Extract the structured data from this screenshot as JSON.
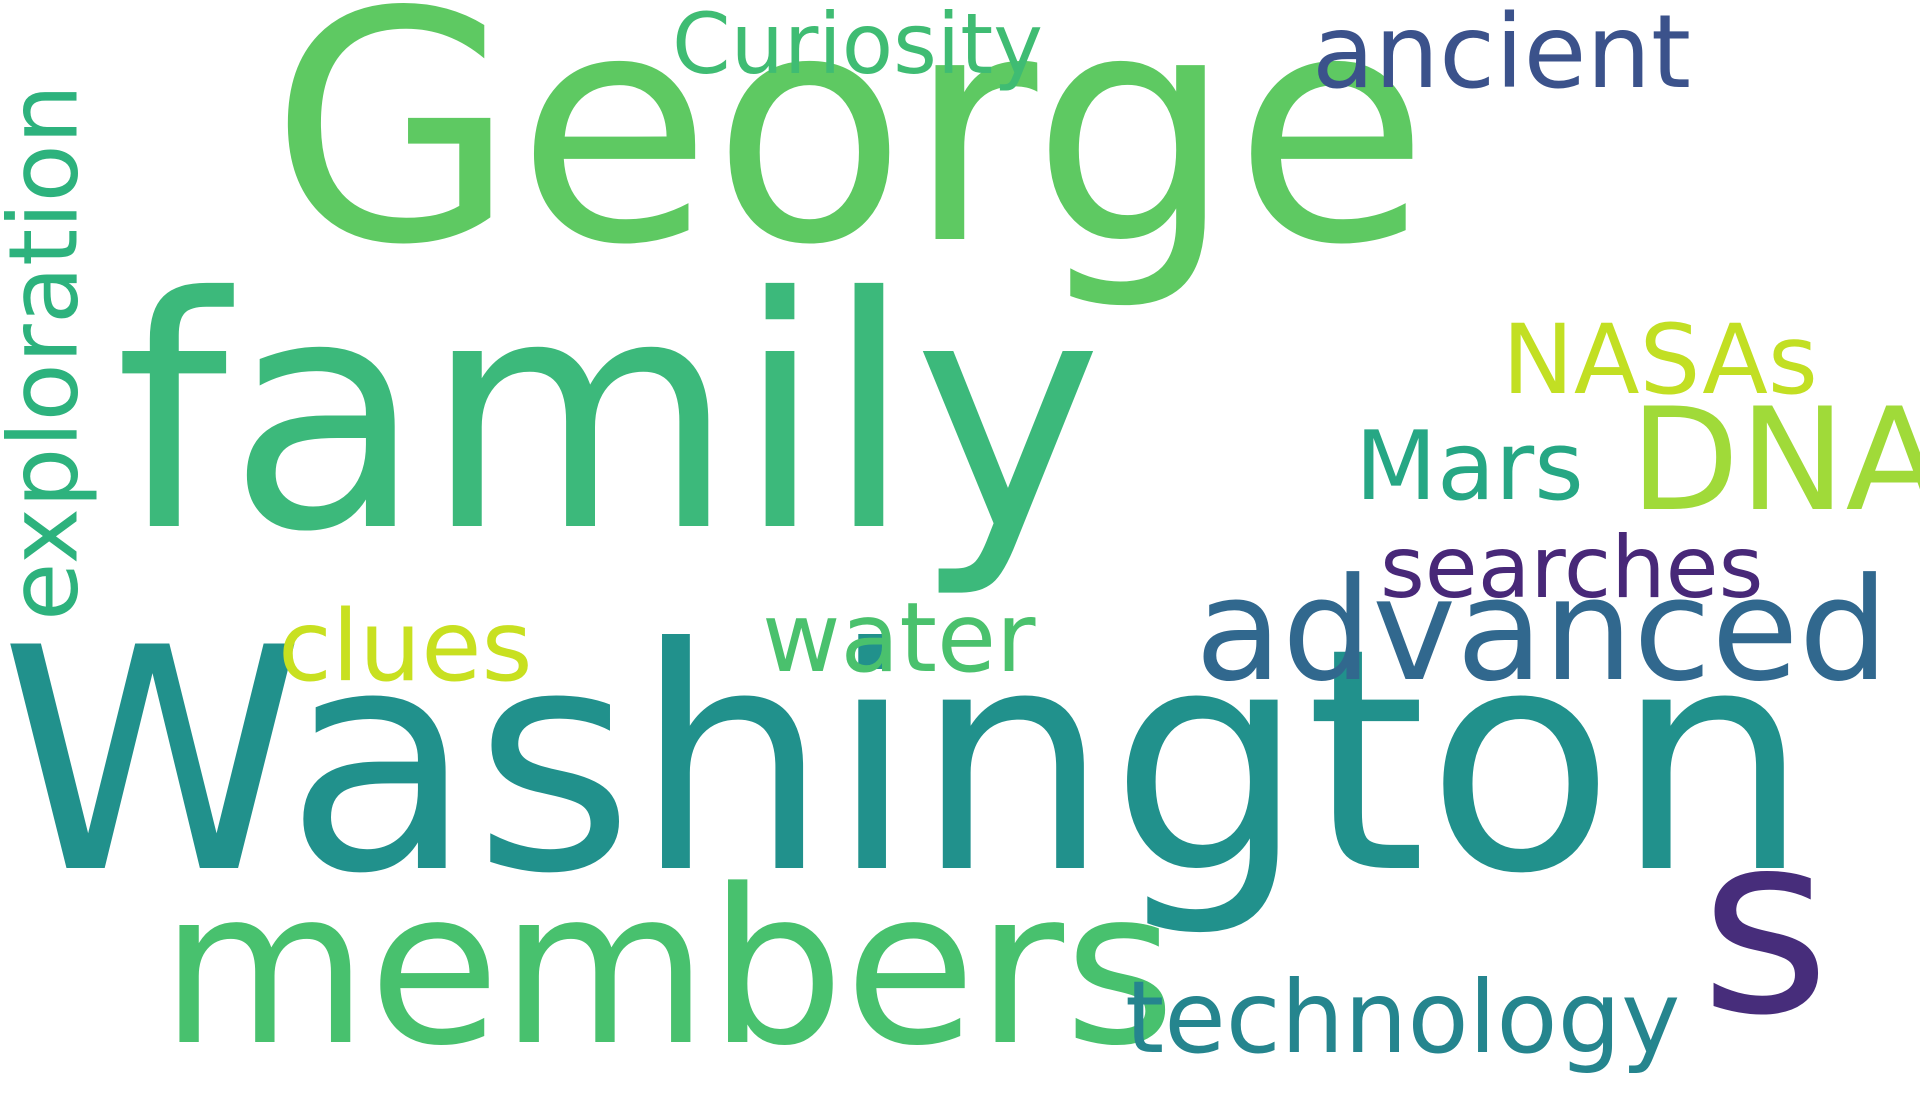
{
  "words": [
    {
      "key": "george",
      "text": "George",
      "color": "#5ec962"
    },
    {
      "key": "family",
      "text": "family",
      "color": "#3cb97b"
    },
    {
      "key": "washington",
      "text": "Washington",
      "color": "#21918c"
    },
    {
      "key": "members",
      "text": "members",
      "color": "#48c16e"
    },
    {
      "key": "s",
      "text": "s",
      "color": "#472d7b"
    },
    {
      "key": "advanced",
      "text": "advanced",
      "color": "#31688e"
    },
    {
      "key": "dna",
      "text": "DNA",
      "color": "#a0da39"
    },
    {
      "key": "technology",
      "text": "technology",
      "color": "#25858e"
    },
    {
      "key": "exploration",
      "text": "exploration",
      "color": "#2db27d"
    },
    {
      "key": "curiosity",
      "text": "Curiosity",
      "color": "#3fbc73"
    },
    {
      "key": "ancient",
      "text": "ancient",
      "color": "#3b528b"
    },
    {
      "key": "nasas",
      "text": "NASAs",
      "color": "#c2df23"
    },
    {
      "key": "mars",
      "text": "Mars",
      "color": "#26a784"
    },
    {
      "key": "searches",
      "text": "searches",
      "color": "#482878"
    },
    {
      "key": "clues",
      "text": "clues",
      "color": "#c8e020"
    },
    {
      "key": "water",
      "text": "water",
      "color": "#4ac16d"
    }
  ]
}
